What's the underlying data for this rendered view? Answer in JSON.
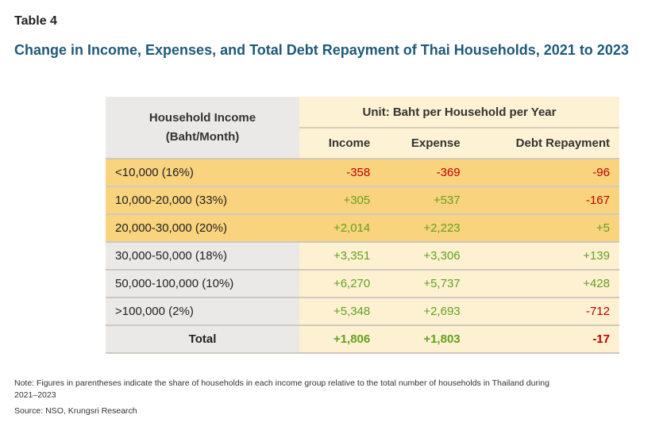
{
  "label": "Table 4",
  "title": "Change in Income, Expenses, and Total Debt Repayment of Thai Households, 2021 to 2023",
  "header": {
    "row_header": "Household Income",
    "row_header_sub": "(Baht/Month)",
    "unit": "Unit: Baht per Household per Year",
    "columns": [
      "Income",
      "Expense",
      "Debt Repayment"
    ]
  },
  "rows": [
    {
      "group": "<10,000 (16%)",
      "values": [
        "-358",
        "-369",
        "-96"
      ]
    },
    {
      "group": "10,000-20,000 (33%)",
      "values": [
        "+305",
        "+537",
        "-167"
      ]
    },
    {
      "group": "20,000-30,000 (20%)",
      "values": [
        "+2,014",
        "+2,223",
        "+5"
      ]
    },
    {
      "group": "30,000-50,000 (18%)",
      "values": [
        "+3,351",
        "+3,306",
        "+139"
      ]
    },
    {
      "group": "50,000-100,000 (10%)",
      "values": [
        "+6,270",
        "+5,737",
        "+428"
      ]
    },
    {
      "group": ">100,000 (2%)",
      "values": [
        "+5,348",
        "+2,693",
        "-712"
      ]
    },
    {
      "group": "Total",
      "values": [
        "+1,806",
        "+1,803",
        "-17"
      ]
    }
  ],
  "note": "Note: Figures in parentheses indicate the share of households in each income group relative to the total number of households in Thailand during 2021–2023",
  "source": "Source: NSO, Krungsri Research",
  "colors": {
    "positive": "#63a020",
    "negative": "#c00000",
    "highlight": "#f9d37e",
    "title": "#1f5a7a"
  }
}
